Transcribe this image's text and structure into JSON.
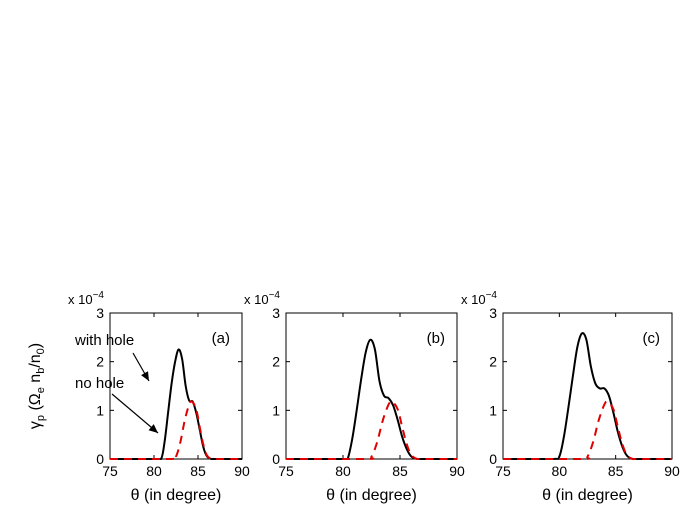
{
  "figure": {
    "ylabel": "γ_p (Ω_e n_b/n_0)",
    "exponent_base": "x 10",
    "exponent_power": "−4",
    "annotations": {
      "with_hole": "with hole",
      "no_hole": "no hole"
    }
  },
  "chart_data": [
    {
      "type": "line",
      "panel_label": "(a)",
      "xlabel": "θ (in degree)",
      "ylabel": "γ_p (Ω_e n_b/n_0)",
      "xlim": [
        75,
        90
      ],
      "ylim": [
        0,
        3
      ],
      "x_ticks": [
        75,
        80,
        85,
        90
      ],
      "y_ticks": [
        0,
        1,
        2,
        3
      ],
      "y_scale": "x 10^-4",
      "series": [
        {
          "name": "with hole",
          "style": "solid",
          "color": "#000000",
          "x": [
            75,
            80,
            80.8,
            81.2,
            81.6,
            82.0,
            82.4,
            82.8,
            83.2,
            83.6,
            84.0,
            84.4,
            84.8,
            85.2,
            85.6,
            86.0,
            86.5,
            87,
            90
          ],
          "y": [
            0,
            0,
            0,
            0.35,
            0.95,
            1.55,
            2.0,
            2.25,
            2.05,
            1.5,
            1.2,
            1.18,
            0.95,
            0.6,
            0.25,
            0.06,
            0,
            0,
            0
          ]
        },
        {
          "name": "no hole",
          "style": "dashed",
          "color": "#e00000",
          "x": [
            75,
            82.0,
            82.5,
            83.0,
            83.5,
            84.0,
            84.3,
            84.8,
            85.2,
            85.6,
            86.0,
            86.5,
            87,
            90
          ],
          "y": [
            0,
            0,
            0.05,
            0.35,
            0.8,
            1.12,
            1.18,
            1.02,
            0.65,
            0.3,
            0.08,
            0,
            0,
            0
          ]
        }
      ]
    },
    {
      "type": "line",
      "panel_label": "(b)",
      "xlabel": "θ (in degree)",
      "xlim": [
        75,
        90
      ],
      "ylim": [
        0,
        3
      ],
      "x_ticks": [
        75,
        80,
        85,
        90
      ],
      "y_ticks": [
        0,
        1,
        2,
        3
      ],
      "y_scale": "x 10^-4",
      "series": [
        {
          "name": "with hole",
          "style": "solid",
          "color": "#000000",
          "x": [
            75,
            80,
            80.4,
            80.8,
            81.2,
            81.6,
            82.0,
            82.4,
            82.8,
            83.2,
            83.6,
            84.0,
            84.4,
            84.8,
            85.2,
            85.6,
            86.0,
            86.5,
            87,
            90
          ],
          "y": [
            0,
            0,
            0,
            0.4,
            1.0,
            1.65,
            2.2,
            2.45,
            2.25,
            1.6,
            1.3,
            1.25,
            1.1,
            0.8,
            0.45,
            0.2,
            0.05,
            0,
            0,
            0
          ]
        },
        {
          "name": "no hole",
          "style": "dashed",
          "color": "#e00000",
          "x": [
            75,
            82.0,
            82.5,
            83.0,
            83.5,
            84.0,
            84.3,
            84.8,
            85.2,
            85.6,
            86.0,
            86.5,
            87,
            90
          ],
          "y": [
            0,
            0,
            0.05,
            0.35,
            0.8,
            1.12,
            1.18,
            1.02,
            0.65,
            0.3,
            0.08,
            0,
            0,
            0
          ]
        }
      ]
    },
    {
      "type": "line",
      "panel_label": "(c)",
      "xlabel": "θ (in degree)",
      "xlim": [
        75,
        90
      ],
      "ylim": [
        0,
        3
      ],
      "x_ticks": [
        75,
        80,
        85,
        90
      ],
      "y_ticks": [
        0,
        1,
        2,
        3
      ],
      "y_scale": "x 10^-4",
      "series": [
        {
          "name": "with hole",
          "style": "solid",
          "color": "#000000",
          "x": [
            75,
            79.5,
            80.0,
            80.4,
            80.8,
            81.2,
            81.6,
            82.0,
            82.4,
            82.8,
            83.2,
            83.6,
            84.0,
            84.4,
            84.8,
            85.2,
            85.6,
            86.0,
            86.5,
            87,
            90
          ],
          "y": [
            0,
            0,
            0.05,
            0.45,
            1.05,
            1.7,
            2.3,
            2.58,
            2.45,
            1.9,
            1.55,
            1.45,
            1.45,
            1.3,
            0.95,
            0.55,
            0.25,
            0.07,
            0,
            0,
            0
          ]
        },
        {
          "name": "no hole",
          "style": "dashed",
          "color": "#e00000",
          "x": [
            75,
            82.0,
            82.5,
            83.0,
            83.5,
            84.0,
            84.3,
            84.8,
            85.2,
            85.6,
            86.0,
            86.5,
            87,
            90
          ],
          "y": [
            0,
            0,
            0.05,
            0.35,
            0.8,
            1.12,
            1.18,
            1.02,
            0.65,
            0.3,
            0.08,
            0,
            0,
            0
          ]
        }
      ]
    }
  ]
}
